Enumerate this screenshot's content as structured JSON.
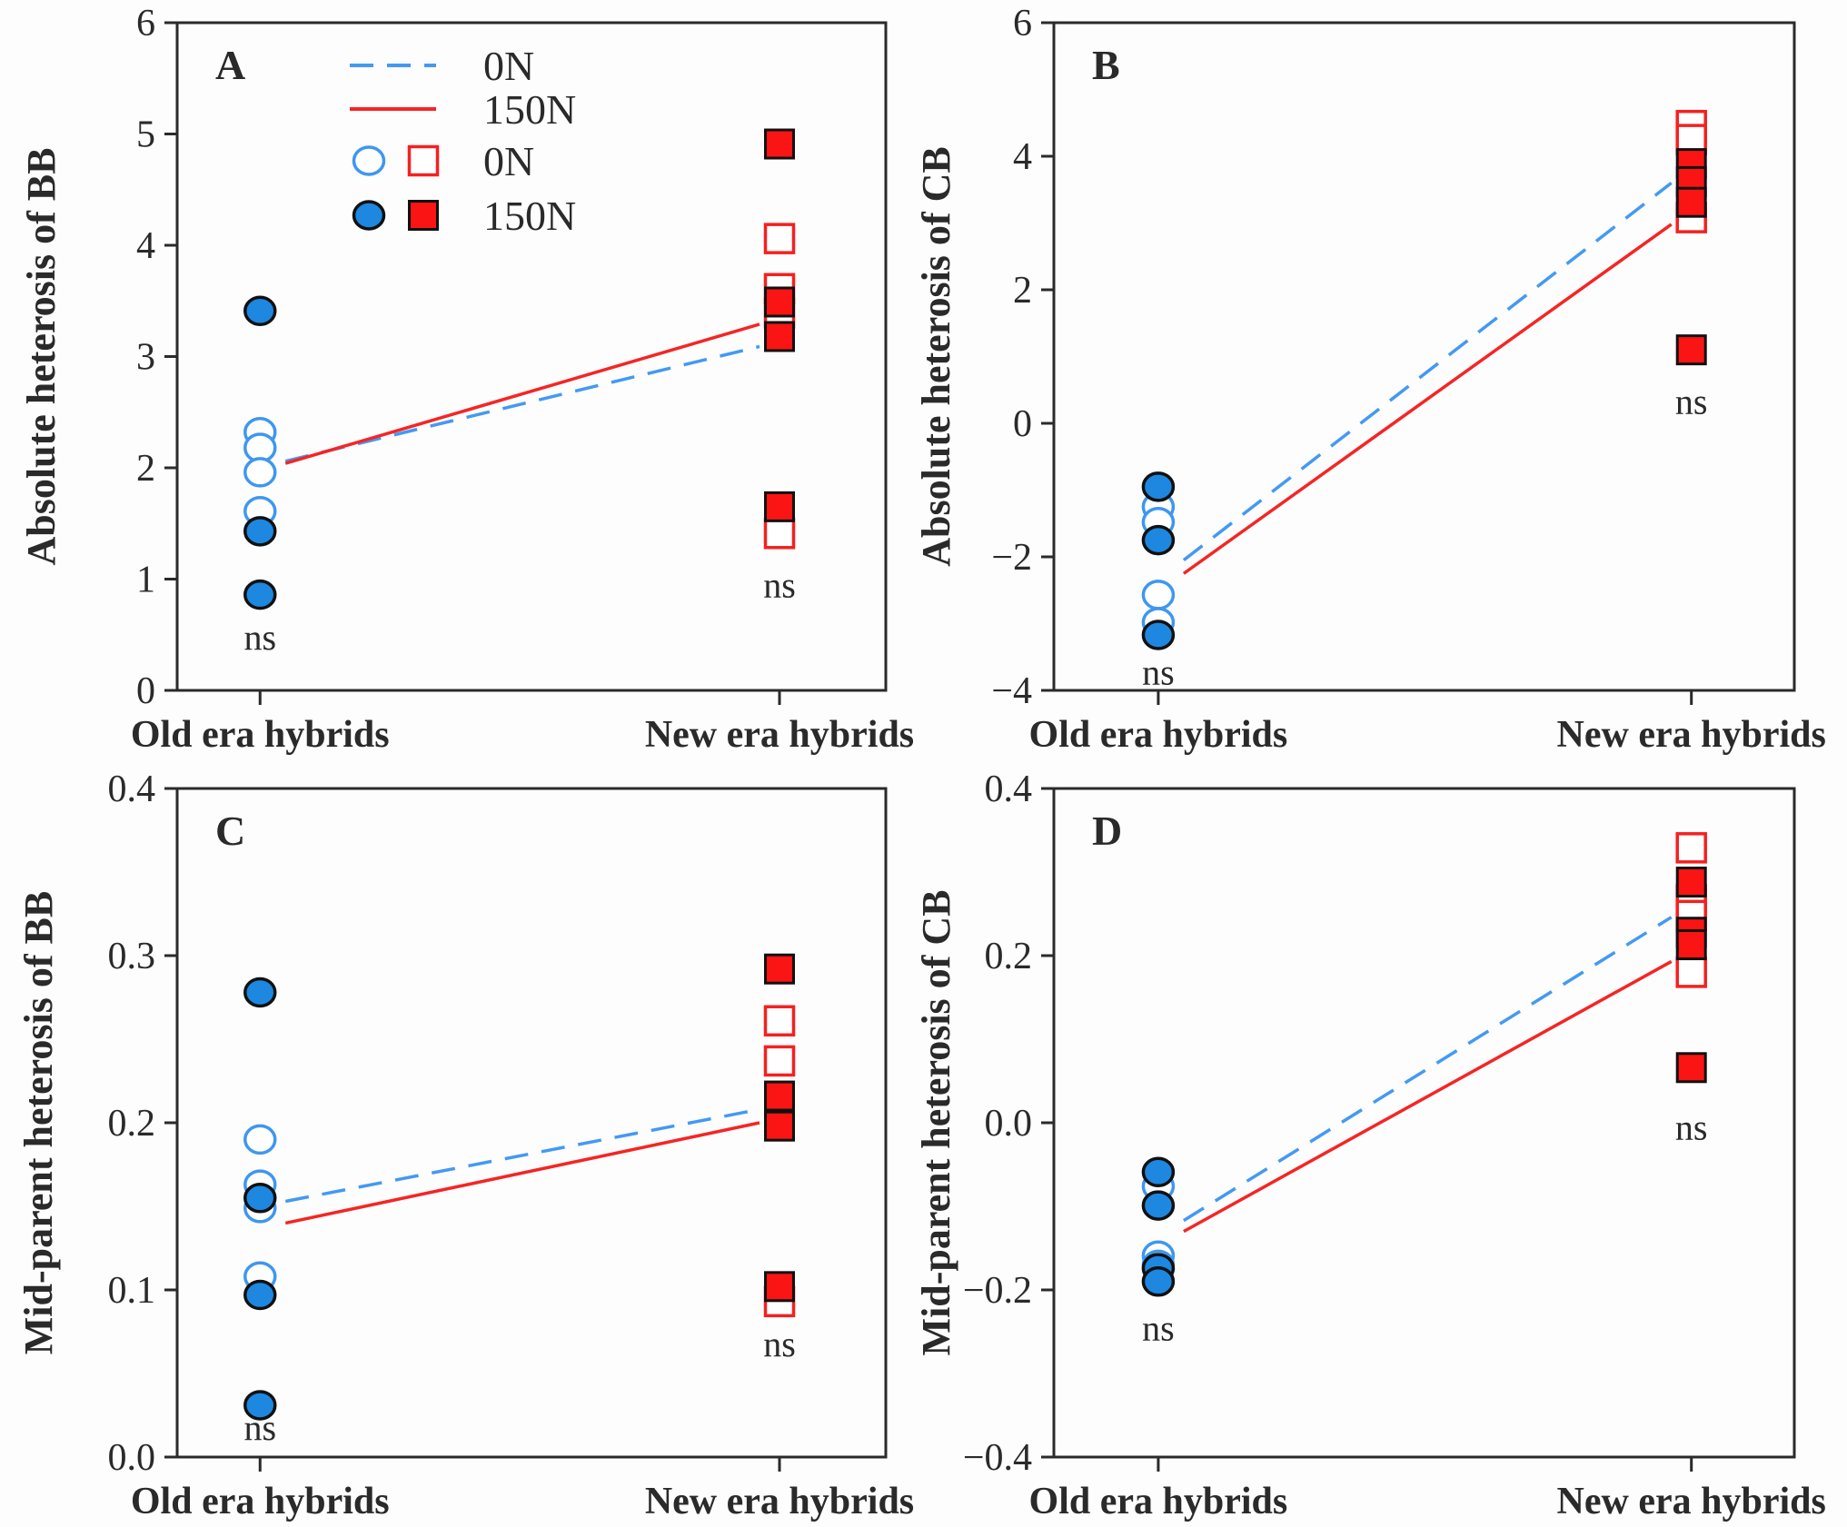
{
  "figure": {
    "ns_label": "ns",
    "categories": [
      "Old era hybrids",
      "New era hybrids"
    ],
    "legend": [
      {
        "symbol": "dashed-line",
        "label": "0N"
      },
      {
        "symbol": "solid-line",
        "label": "150N"
      },
      {
        "symbol": "open-markers",
        "label": "0N"
      },
      {
        "symbol": "filled-markers",
        "label": "150N"
      }
    ]
  },
  "colors": {
    "blue_fill": "#1e87e0",
    "blue_stroke": "#3e97f0",
    "blue_line": "#4499f2",
    "red_fill": "#fa1414",
    "red_stroke": "#f52020",
    "red_line": "#f52525",
    "axis_black": "#2a2a2a",
    "marker_outline": "#111111"
  },
  "chart_data": [
    {
      "panel": "A",
      "type": "scatter",
      "ylabel": "Absolute heterosis of BB",
      "ylim": [
        0,
        6
      ],
      "yticks": [
        {
          "v": 0,
          "t": "0"
        },
        {
          "v": 1,
          "t": "1"
        },
        {
          "v": 2,
          "t": "2"
        },
        {
          "v": 3,
          "t": "3"
        },
        {
          "v": 4,
          "t": "4"
        },
        {
          "v": 5,
          "t": "5"
        },
        {
          "v": 6,
          "t": "6"
        }
      ],
      "categories": [
        "Old era hybrids",
        "New era hybrids"
      ],
      "series": [
        {
          "name": "0N old era",
          "marker": "circle-open",
          "cat": 0,
          "values": [
            2.32,
            2.18,
            1.96,
            1.61
          ]
        },
        {
          "name": "150N old era",
          "marker": "circle-filled",
          "cat": 0,
          "values": [
            3.41,
            1.43,
            0.86
          ]
        },
        {
          "name": "0N new era",
          "marker": "square-open",
          "cat": 1,
          "values": [
            4.06,
            3.61,
            3.39,
            1.41
          ]
        },
        {
          "name": "150N new era",
          "marker": "square-filled",
          "cat": 1,
          "values": [
            4.91,
            3.49,
            3.18,
            1.65
          ]
        }
      ],
      "trend_lines": [
        {
          "name": "0N",
          "style": "dashed",
          "color": "blue",
          "values": [
            2.06,
            3.09
          ]
        },
        {
          "name": "150N",
          "style": "solid",
          "color": "red",
          "values": [
            2.04,
            3.29
          ]
        }
      ],
      "annotations": [
        {
          "text": "ns",
          "cat": 0,
          "y": 0.48
        },
        {
          "text": "ns",
          "cat": 1,
          "y": 0.95
        }
      ],
      "has_legend": true
    },
    {
      "panel": "B",
      "type": "scatter",
      "ylabel": "Absolute heterosis of CB",
      "ylim": [
        -4,
        6
      ],
      "yticks": [
        {
          "v": -4,
          "t": "−4"
        },
        {
          "v": -2,
          "t": "−2"
        },
        {
          "v": 0,
          "t": "0"
        },
        {
          "v": 2,
          "t": "2"
        },
        {
          "v": 4,
          "t": "4"
        },
        {
          "v": 6,
          "t": "6"
        }
      ],
      "categories": [
        "Old era hybrids",
        "New era hybrids"
      ],
      "series": [
        {
          "name": "0N old era",
          "marker": "circle-open",
          "cat": 0,
          "values": [
            -1.25,
            -1.48,
            -2.57,
            -2.98
          ]
        },
        {
          "name": "150N old era",
          "marker": "circle-filled",
          "cat": 0,
          "values": [
            -0.95,
            -1.75,
            -3.17
          ]
        },
        {
          "name": "0N new era",
          "marker": "square-open",
          "cat": 1,
          "values": [
            4.46,
            4.25,
            3.08
          ]
        },
        {
          "name": "150N new era",
          "marker": "square-filled",
          "cat": 1,
          "values": [
            3.89,
            3.62,
            3.31,
            1.1
          ]
        }
      ],
      "trend_lines": [
        {
          "name": "0N",
          "style": "dashed",
          "color": "blue",
          "values": [
            -2.05,
            3.6
          ]
        },
        {
          "name": "150N",
          "style": "solid",
          "color": "red",
          "values": [
            -2.25,
            2.98
          ]
        }
      ],
      "annotations": [
        {
          "text": "ns",
          "cat": 0,
          "y": -3.72
        },
        {
          "text": "ns",
          "cat": 1,
          "y": 0.33
        }
      ],
      "has_legend": false
    },
    {
      "panel": "C",
      "type": "scatter",
      "ylabel": "Mid-parent heterosis of BB",
      "ylim": [
        0,
        0.4
      ],
      "yticks": [
        {
          "v": 0,
          "t": "0.0"
        },
        {
          "v": 0.1,
          "t": "0.1"
        },
        {
          "v": 0.2,
          "t": "0.2"
        },
        {
          "v": 0.3,
          "t": "0.3"
        },
        {
          "v": 0.4,
          "t": "0.4"
        }
      ],
      "categories": [
        "Old era hybrids",
        "New era hybrids"
      ],
      "series": [
        {
          "name": "0N old era",
          "marker": "circle-open",
          "cat": 0,
          "values": [
            0.19,
            0.163,
            0.149,
            0.108
          ]
        },
        {
          "name": "150N old era",
          "marker": "circle-filled",
          "cat": 0,
          "values": [
            0.278,
            0.155,
            0.097,
            0.031
          ]
        },
        {
          "name": "0N new era",
          "marker": "square-open",
          "cat": 1,
          "values": [
            0.261,
            0.237,
            0.093
          ]
        },
        {
          "name": "150N new era",
          "marker": "square-filled",
          "cat": 1,
          "values": [
            0.292,
            0.216,
            0.198,
            0.102
          ]
        }
      ],
      "trend_lines": [
        {
          "name": "0N",
          "style": "dashed",
          "color": "blue",
          "values": [
            0.153,
            0.208
          ]
        },
        {
          "name": "150N",
          "style": "solid",
          "color": "red",
          "values": [
            0.14,
            0.2
          ]
        }
      ],
      "annotations": [
        {
          "text": "ns",
          "cat": 0,
          "y": 0.018
        },
        {
          "text": "ns",
          "cat": 1,
          "y": 0.068
        }
      ],
      "has_legend": false
    },
    {
      "panel": "D",
      "type": "scatter",
      "ylabel": "Mid-parent heterosis of CB",
      "ylim": [
        -0.4,
        0.4
      ],
      "yticks": [
        {
          "v": -0.4,
          "t": "−0.4"
        },
        {
          "v": -0.2,
          "t": "−0.2"
        },
        {
          "v": 0,
          "t": "0.0"
        },
        {
          "v": 0.2,
          "t": "0.2"
        },
        {
          "v": 0.4,
          "t": "0.4"
        }
      ],
      "categories": [
        "Old era hybrids",
        "New era hybrids"
      ],
      "series": [
        {
          "name": "0N old era",
          "marker": "circle-open",
          "cat": 0,
          "values": [
            -0.076,
            -0.159,
            -0.17
          ]
        },
        {
          "name": "150N old era",
          "marker": "circle-filled",
          "cat": 0,
          "values": [
            -0.059,
            -0.099,
            -0.174,
            -0.19
          ]
        },
        {
          "name": "0N new era",
          "marker": "square-open",
          "cat": 1,
          "values": [
            0.329,
            0.267,
            0.248,
            0.18
          ]
        },
        {
          "name": "150N new era",
          "marker": "square-filled",
          "cat": 1,
          "values": [
            0.288,
            0.228,
            0.213,
            0.066
          ]
        }
      ],
      "trend_lines": [
        {
          "name": "0N",
          "style": "dashed",
          "color": "blue",
          "values": [
            -0.117,
            0.246
          ]
        },
        {
          "name": "150N",
          "style": "solid",
          "color": "red",
          "values": [
            -0.13,
            0.193
          ]
        }
      ],
      "annotations": [
        {
          "text": "ns",
          "cat": 0,
          "y": -0.245
        },
        {
          "text": "ns",
          "cat": 1,
          "y": -0.005
        }
      ],
      "has_legend": false
    }
  ]
}
